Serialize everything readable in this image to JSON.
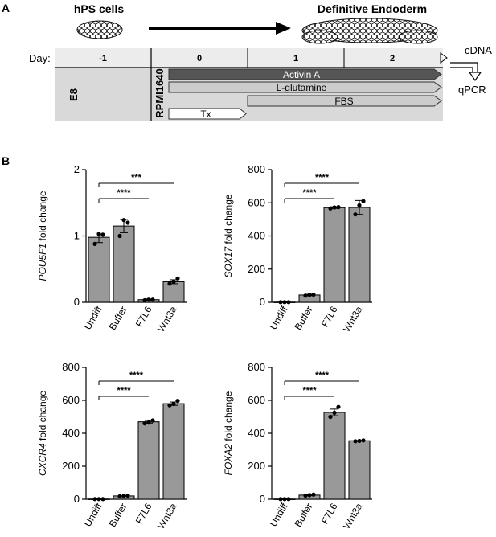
{
  "panel_a": {
    "label": "A",
    "hps_title": "hPS cells",
    "de_title": "Definitive Endoderm",
    "day_label": "Day:",
    "days": [
      "-1",
      "0",
      "1",
      "2"
    ],
    "e8_label": "E8",
    "rpmi_label": "RPMI1640",
    "bars": [
      {
        "label": "Activin A",
        "color": "#555555",
        "text_color": "#ffffff"
      },
      {
        "label": "L-glutamine",
        "color": "#cccccc",
        "text_color": "#000000"
      },
      {
        "label": "FBS",
        "color": "#cccccc",
        "text_color": "#000000"
      },
      {
        "label": "Tx",
        "color": "#ffffff",
        "text_color": "#000000"
      }
    ],
    "cdna_label": "cDNA",
    "qpcr_label": "qPCR"
  },
  "panel_b": {
    "label": "B"
  },
  "colors": {
    "bar_fill": "#999999",
    "shade_bg": "#d9d9d9",
    "activin": "#555555"
  },
  "chart_data": [
    {
      "type": "bar",
      "gene": "POU5F1",
      "ylabel_suffix": " fold change",
      "categories": [
        "Undiff",
        "Buffer",
        "F7L6",
        "Wnt3a"
      ],
      "values": [
        0.98,
        1.15,
        0.04,
        0.31
      ],
      "errors": [
        0.08,
        0.1,
        0.01,
        0.03
      ],
      "points": [
        [
          0.88,
          1.03,
          1.02
        ],
        [
          1.0,
          1.24,
          1.2
        ],
        [
          0.03,
          0.04,
          0.04
        ],
        [
          0.28,
          0.31,
          0.36
        ]
      ],
      "ylim": [
        0,
        2
      ],
      "yticks": [
        "0",
        "1",
        "2"
      ],
      "significance": [
        {
          "label": "****",
          "to": "F7L6"
        },
        {
          "label": "***",
          "to": "Wnt3a"
        }
      ]
    },
    {
      "type": "bar",
      "gene": "SOX17",
      "ylabel_suffix": " fold change",
      "categories": [
        "Undiff",
        "Buffer",
        "F7L6",
        "Wnt3a"
      ],
      "values": [
        1,
        44,
        571,
        572
      ],
      "errors": [
        0.5,
        4,
        5,
        42
      ],
      "points": [
        [
          1,
          1,
          1
        ],
        [
          40,
          45,
          46
        ],
        [
          566,
          572,
          574
        ],
        [
          530,
          585,
          610
        ]
      ],
      "ylim": [
        0,
        800
      ],
      "yticks": [
        "0",
        "200",
        "400",
        "600",
        "800"
      ],
      "significance": [
        {
          "label": "****",
          "to": "F7L6"
        },
        {
          "label": "****",
          "to": "Wnt3a"
        }
      ]
    },
    {
      "type": "bar",
      "gene": "CXCR4",
      "ylabel_suffix": " fold change",
      "categories": [
        "Undiff",
        "Buffer",
        "F7L6",
        "Wnt3a"
      ],
      "values": [
        1,
        20,
        470,
        580
      ],
      "errors": [
        0.5,
        2,
        8,
        10
      ],
      "points": [
        [
          1,
          1,
          1
        ],
        [
          18,
          20,
          22
        ],
        [
          460,
          465,
          478
        ],
        [
          570,
          578,
          597
        ]
      ],
      "ylim": [
        0,
        800
      ],
      "yticks": [
        "0",
        "200",
        "400",
        "600",
        "800"
      ],
      "significance": [
        {
          "label": "****",
          "to": "F7L6"
        },
        {
          "label": "****",
          "to": "Wnt3a"
        }
      ]
    },
    {
      "type": "bar",
      "gene": "FOXA2",
      "ylabel_suffix": " fold change",
      "categories": [
        "Undiff",
        "Buffer",
        "F7L6",
        "Wnt3a"
      ],
      "values": [
        1,
        25,
        527,
        355
      ],
      "errors": [
        0.5,
        3,
        20,
        2
      ],
      "points": [
        [
          1,
          1,
          1
        ],
        [
          22,
          25,
          28
        ],
        [
          500,
          525,
          560
        ],
        [
          352,
          354,
          357
        ]
      ],
      "ylim": [
        0,
        800
      ],
      "yticks": [
        "0",
        "200",
        "400",
        "600",
        "800"
      ],
      "significance": [
        {
          "label": "****",
          "to": "F7L6"
        },
        {
          "label": "****",
          "to": "Wnt3a"
        }
      ]
    }
  ]
}
